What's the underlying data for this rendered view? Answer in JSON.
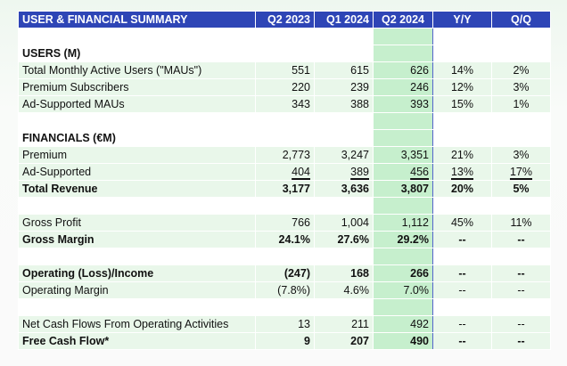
{
  "header": {
    "title": "USER & FINANCIAL SUMMARY",
    "columns": [
      "Q2 2023",
      "Q1 2024",
      "Q2 2024",
      "Y/Y",
      "Q/Q"
    ]
  },
  "rows": [
    {
      "type": "blank"
    },
    {
      "type": "section",
      "label": "USERS (M)"
    },
    {
      "type": "data",
      "label": "Total Monthly Active Users (\"MAUs\")",
      "values": [
        "551",
        "615",
        "626",
        "14%",
        "2%"
      ]
    },
    {
      "type": "data",
      "label": "Premium Subscribers",
      "values": [
        "220",
        "239",
        "246",
        "12%",
        "3%"
      ]
    },
    {
      "type": "data",
      "label": "Ad-Supported MAUs",
      "values": [
        "343",
        "388",
        "393",
        "15%",
        "1%"
      ]
    },
    {
      "type": "blank"
    },
    {
      "type": "section",
      "label": "FINANCIALS (€M)"
    },
    {
      "type": "data",
      "label": "Premium",
      "values": [
        "2,773",
        "3,247",
        "3,351",
        "21%",
        "3%"
      ]
    },
    {
      "type": "data",
      "label": "Ad-Supported",
      "values": [
        "404",
        "389",
        "456",
        "13%",
        "17%"
      ],
      "underline": true
    },
    {
      "type": "data",
      "label": "Total Revenue",
      "values": [
        "3,177",
        "3,636",
        "3,807",
        "20%",
        "5%"
      ],
      "bold": true
    },
    {
      "type": "blank"
    },
    {
      "type": "data",
      "label": "Gross Profit",
      "values": [
        "766",
        "1,004",
        "1,112",
        "45%",
        "11%"
      ]
    },
    {
      "type": "data",
      "label": "Gross Margin",
      "values": [
        "24.1%",
        "27.6%",
        "29.2%",
        "--",
        "--"
      ],
      "bold": true
    },
    {
      "type": "blank"
    },
    {
      "type": "data",
      "label": "Operating (Loss)/Income",
      "values": [
        "(247)",
        "168",
        "266",
        "--",
        "--"
      ],
      "bold": true
    },
    {
      "type": "data",
      "label": "Operating Margin",
      "values": [
        "(7.8%)",
        "4.6%",
        "7.0%",
        "--",
        "--"
      ]
    },
    {
      "type": "blank"
    },
    {
      "type": "data",
      "label": "Net Cash Flows From Operating Activities",
      "values": [
        "13",
        "211",
        "492",
        "--",
        "--"
      ]
    },
    {
      "type": "data",
      "label": "Free Cash Flow*",
      "values": [
        "9",
        "207",
        "490",
        "--",
        "--"
      ],
      "bold": true
    }
  ],
  "colors": {
    "header": "#2e45b6",
    "row": "#e9f7ea",
    "highlight": "#c6efcd",
    "highlight_border": "#5566cc"
  }
}
